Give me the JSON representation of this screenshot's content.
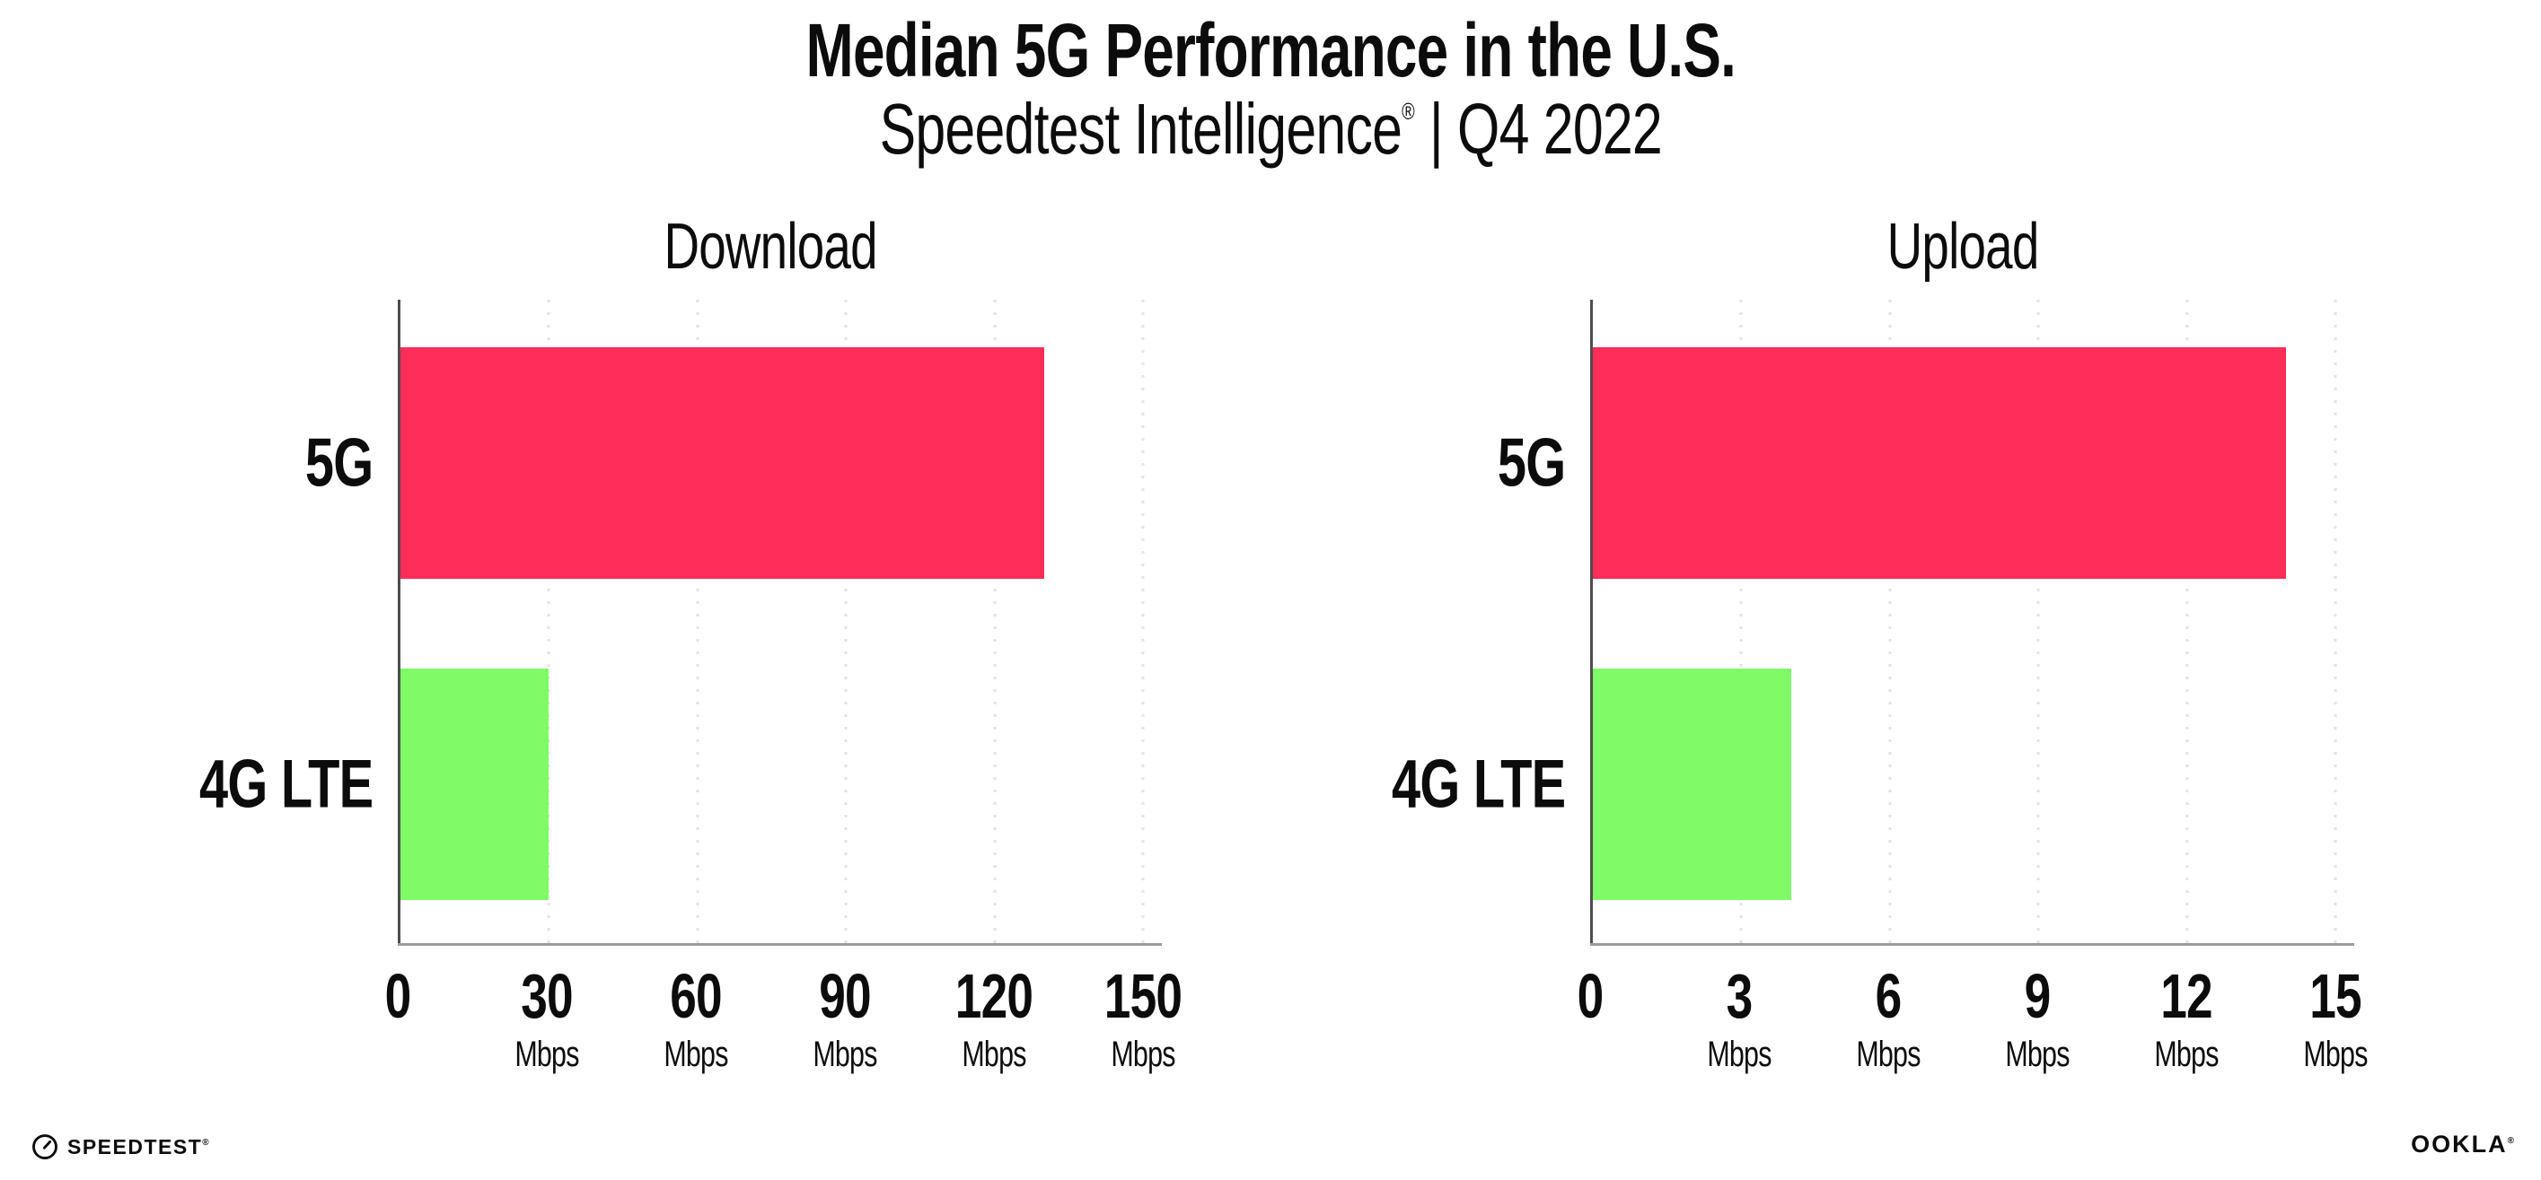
{
  "header": {
    "title": "Median 5G Performance in the U.S.",
    "subtitle_brand": "Speedtest Intelligence",
    "subtitle_reg": "®",
    "subtitle_rest": "| Q4 2022"
  },
  "chart_data": [
    {
      "type": "bar",
      "orientation": "horizontal",
      "title": "Download",
      "categories": [
        "5G",
        "4G LTE"
      ],
      "values": [
        130,
        30
      ],
      "unit": "Mbps",
      "xlim": [
        0,
        150
      ],
      "xticks": [
        0,
        30,
        60,
        90,
        120,
        150
      ],
      "bar_colors": [
        "#ff2d58",
        "#80fb68"
      ],
      "grid": "vertical-dotted",
      "legend": "none"
    },
    {
      "type": "bar",
      "orientation": "horizontal",
      "title": "Upload",
      "categories": [
        "5G",
        "4G LTE"
      ],
      "values": [
        14,
        4
      ],
      "unit": "Mbps",
      "xlim": [
        0,
        15
      ],
      "xticks": [
        0,
        3,
        6,
        9,
        12,
        15
      ],
      "bar_colors": [
        "#ff2d58",
        "#80fb68"
      ],
      "grid": "vertical-dotted",
      "legend": "none"
    }
  ],
  "footer": {
    "speedtest_label": "SPEEDTEST",
    "speedtest_reg": "®",
    "ookla_label": "OOKLA",
    "ookla_reg": "®"
  },
  "colors": {
    "bar_5g": "#ff2d58",
    "bar_4g_lte": "#80fb68",
    "axis_line": "#9b9b9b",
    "y_spine": "#4d4d4d",
    "gridline": "#e2e2ea",
    "text": "#0c0c0c"
  }
}
